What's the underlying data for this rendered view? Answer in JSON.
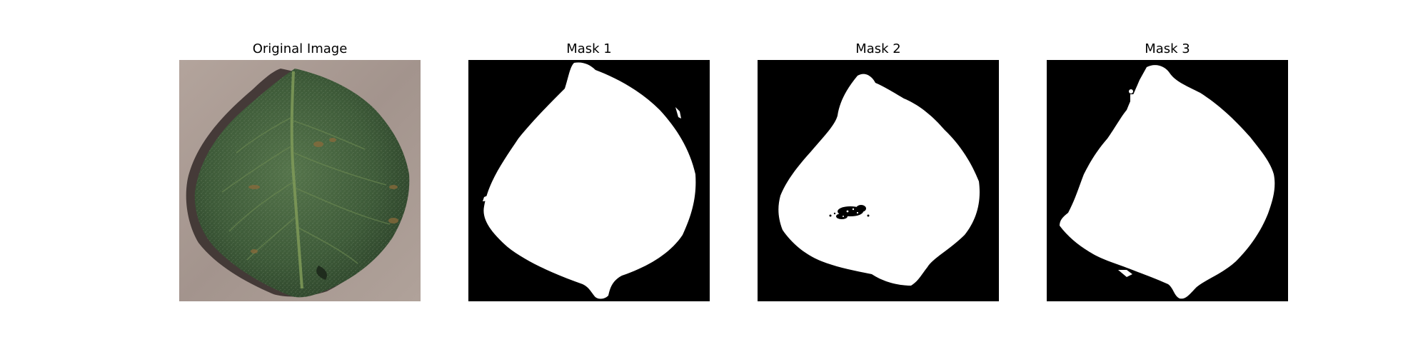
{
  "figure": {
    "panels": [
      {
        "title": "Original Image"
      },
      {
        "title": "Mask 1"
      },
      {
        "title": "Mask 2"
      },
      {
        "title": "Mask 3"
      }
    ]
  },
  "colors": {
    "background": "#ffffff",
    "mask_fg": "#ffffff",
    "mask_bg": "#000000",
    "leaf_dark": "#2f4a2e",
    "leaf_mid": "#46663f",
    "surface": "#a79890",
    "shadow": "#3a302e"
  }
}
